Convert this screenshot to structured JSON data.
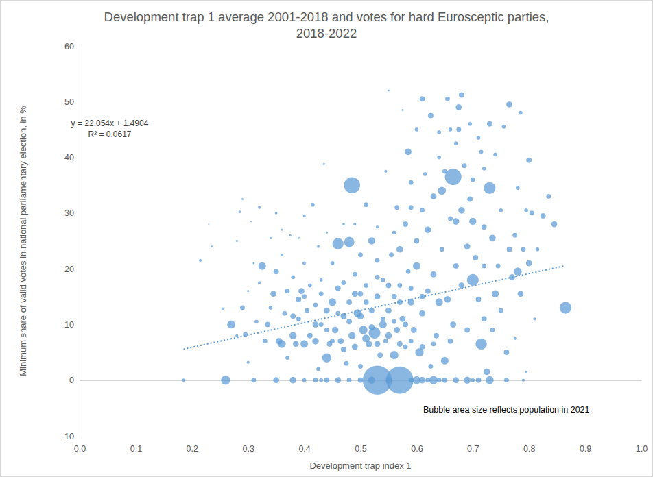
{
  "chart_data": {
    "type": "scatter",
    "title": [
      "Development trap 1 average 2001-2018 and votes for hard Eurosceptic parties,",
      "2018-2022"
    ],
    "x_label": "Development trap index 1",
    "y_label": "Minimum share of valid votes in national parliamentary election, in %",
    "note": "Bubble area size reflects population in 2021",
    "color": "#5b9bd5",
    "marker": "circle",
    "grid": false,
    "xlim": [
      0,
      1
    ],
    "xticks": [
      {
        "value": 0,
        "label": "0.0"
      },
      0.1,
      0.2,
      0.3,
      0.4,
      0.5,
      0.6,
      0.7,
      0.8,
      0.9,
      {
        "value": 1,
        "label": "1.0"
      }
    ],
    "ylim": [
      -10,
      60
    ],
    "yticks": [
      -10,
      0,
      10,
      20,
      30,
      40,
      50,
      60
    ],
    "trendline": {
      "line_style": "dotted",
      "equation": "y = 22.054x + 1.4904",
      "r_squared": "R² = 0.0617",
      "x": [
        0.185,
        0.865
      ],
      "values": [
        5.57,
        20.57
      ]
    },
    "x": [
      0.185,
      0.26,
      0.31,
      0.35,
      0.38,
      0.42,
      0.44,
      0.46,
      0.48,
      0.5,
      0.53,
      0.57,
      0.55,
      0.6,
      0.61,
      0.63,
      0.65,
      0.67,
      0.69,
      0.71,
      0.73,
      0.76,
      0.79,
      0.52,
      0.4,
      0.59,
      0.64,
      0.7,
      0.43,
      0.62,
      0.215,
      0.235,
      0.23,
      0.255,
      0.27,
      0.28,
      0.28,
      0.285,
      0.29,
      0.29,
      0.295,
      0.3,
      0.3,
      0.305,
      0.31,
      0.315,
      0.32,
      0.32,
      0.325,
      0.33,
      0.335,
      0.34,
      0.34,
      0.345,
      0.35,
      0.35,
      0.355,
      0.36,
      0.36,
      0.365,
      0.37,
      0.37,
      0.375,
      0.38,
      0.38,
      0.385,
      0.39,
      0.39,
      0.395,
      0.4,
      0.4,
      0.4,
      0.405,
      0.41,
      0.41,
      0.415,
      0.42,
      0.42,
      0.425,
      0.425,
      0.43,
      0.43,
      0.435,
      0.44,
      0.44,
      0.445,
      0.45,
      0.45,
      0.455,
      0.46,
      0.46,
      0.465,
      0.47,
      0.47,
      0.475,
      0.48,
      0.48,
      0.485,
      0.485,
      0.49,
      0.49,
      0.495,
      0.5,
      0.5,
      0.5,
      0.505,
      0.51,
      0.51,
      0.515,
      0.52,
      0.52,
      0.525,
      0.53,
      0.53,
      0.535,
      0.54,
      0.54,
      0.545,
      0.545,
      0.55,
      0.55,
      0.555,
      0.56,
      0.56,
      0.565,
      0.565,
      0.57,
      0.57,
      0.575,
      0.575,
      0.58,
      0.58,
      0.585,
      0.585,
      0.59,
      0.59,
      0.595,
      0.6,
      0.6,
      0.6,
      0.605,
      0.61,
      0.61,
      0.61,
      0.615,
      0.62,
      0.62,
      0.625,
      0.625,
      0.63,
      0.63,
      0.635,
      0.64,
      0.64,
      0.645,
      0.645,
      0.65,
      0.65,
      0.655,
      0.655,
      0.66,
      0.66,
      0.665,
      0.665,
      0.67,
      0.67,
      0.675,
      0.675,
      0.68,
      0.68,
      0.68,
      0.685,
      0.69,
      0.69,
      0.695,
      0.695,
      0.7,
      0.7,
      0.7,
      0.705,
      0.71,
      0.71,
      0.715,
      0.715,
      0.72,
      0.72,
      0.725,
      0.73,
      0.73,
      0.735,
      0.74,
      0.74,
      0.745,
      0.75,
      0.755,
      0.76,
      0.765,
      0.765,
      0.77,
      0.775,
      0.78,
      0.78,
      0.785,
      0.785,
      0.79,
      0.795,
      0.8,
      0.8,
      0.805,
      0.81,
      0.815,
      0.825,
      0.835,
      0.845,
      0.865,
      0.795,
      0.775,
      0.75,
      0.735,
      0.72,
      0.45,
      0.47,
      0.51,
      0.53,
      0.55,
      0.57,
      0.59,
      0.61,
      0.63,
      0.66,
      0.38,
      0.42,
      0.44,
      0.46,
      0.48,
      0.5,
      0.52,
      0.54,
      0.56,
      0.58,
      0.4,
      0.43,
      0.47,
      0.49,
      0.51,
      0.53,
      0.55,
      0.57,
      0.59,
      0.61,
      0.36,
      0.39,
      0.44,
      0.49,
      0.53,
      0.56,
      0.59,
      0.64,
      0.67,
      0.72
    ],
    "values": [
      0,
      0,
      0,
      0,
      0,
      0,
      0,
      0,
      0,
      0,
      0,
      0,
      0,
      0,
      0,
      0,
      0,
      0,
      0,
      0,
      0,
      0,
      0,
      0,
      0,
      0,
      0,
      0,
      0,
      0,
      21.5,
      24,
      28,
      12.8,
      10,
      8,
      25,
      30.2,
      32.5,
      13,
      8.2,
      16,
      3.2,
      28.5,
      21,
      10.5,
      17.5,
      31,
      20.5,
      7,
      10,
      13,
      25.5,
      15.5,
      30,
      19.5,
      7,
      6.5,
      22.5,
      12,
      16,
      4,
      26,
      8,
      18.5,
      6.5,
      14.5,
      11,
      16,
      6.5,
      21,
      29.5,
      12.5,
      8,
      17,
      31.5,
      7,
      13.5,
      2,
      24,
      10,
      18,
      38.8,
      4,
      12.5,
      6.5,
      14,
      21,
      9,
      24.5,
      16.5,
      7,
      11.5,
      28,
      3,
      24.8,
      14,
      35,
      8,
      19,
      6,
      12,
      22.5,
      15.5,
      2.5,
      9,
      31.5,
      17,
      6.5,
      12.5,
      25,
      8.5,
      21.5,
      15,
      4.5,
      10,
      18,
      37.5,
      7,
      12.5,
      52,
      22.5,
      15,
      4.5,
      31,
      9,
      23.5,
      17,
      48.5,
      11,
      28,
      6,
      41,
      19.5,
      14,
      35.5,
      9,
      45,
      25,
      20.5,
      5,
      50.5,
      30.5,
      12,
      37,
      27,
      16,
      47.5,
      2.5,
      33,
      19,
      8,
      44.5,
      14,
      34,
      23.5,
      37.5,
      3.5,
      50.5,
      14.5,
      29,
      45,
      36.5,
      10,
      28.5,
      20.5,
      49,
      45,
      51.2,
      30.5,
      17,
      38.5,
      24,
      9,
      46,
      32.5,
      18,
      28.5,
      36,
      22,
      43.5,
      14.5,
      6.5,
      41,
      27.5,
      20.5,
      1.5,
      46,
      34.5,
      25.5,
      15.5,
      40.5,
      20.5,
      30.5,
      45.5,
      5,
      49.5,
      23.5,
      18.5,
      26,
      19.5,
      34.5,
      48,
      15.5,
      23.5,
      30.5,
      39.5,
      21,
      30,
      11,
      23.5,
      29.5,
      33,
      28,
      13,
      1.5,
      7.5,
      12.5,
      9,
      11,
      7,
      5.5,
      7.5,
      6.5,
      8,
      6.5,
      7,
      6,
      6.5,
      7,
      11.5,
      10,
      9,
      12,
      10.5,
      11.5,
      9.5,
      11,
      10.5,
      10,
      15,
      15.5,
      17.5,
      15.5,
      14,
      18.5,
      17,
      14,
      16.5,
      15,
      27,
      25.5,
      26.5,
      28,
      27.5,
      26.5,
      31,
      40,
      42.5,
      38
    ],
    "size": [
      0.15,
      1.2,
      0.3,
      0.5,
      0.6,
      0.3,
      0.4,
      0.5,
      0.3,
      0.4,
      12.5,
      11.0,
      0.5,
      0.9,
      0.6,
      1.0,
      0.4,
      0.5,
      0.7,
      0.4,
      0.9,
      0.3,
      0.1,
      0.7,
      0.2,
      0.3,
      0.3,
      0.2,
      0.2,
      0.3,
      0.1,
      0.05,
      0.02,
      0.1,
      0.9,
      0.1,
      0.05,
      0.08,
      0.05,
      0.3,
      0.3,
      0.05,
      0.1,
      0.03,
      0.05,
      0.2,
      0.1,
      0.1,
      0.8,
      0.3,
      0.4,
      0.2,
      0.06,
      0.5,
      0.08,
      0.4,
      0.6,
      0.9,
      0.1,
      0.3,
      0.3,
      0.2,
      0.05,
      0.7,
      0.2,
      0.5,
      0.4,
      0.3,
      0.5,
      0.8,
      0.15,
      0.1,
      0.3,
      0.4,
      0.2,
      0.2,
      0.6,
      0.3,
      0.2,
      0.1,
      0.3,
      0.15,
      0.05,
      1.2,
      0.5,
      0.4,
      0.8,
      0.2,
      0.6,
      1.8,
      0.4,
      0.5,
      0.5,
      0.08,
      0.3,
      1.5,
      0.4,
      3.8,
      0.7,
      0.3,
      0.5,
      0.9,
      0.3,
      0.4,
      0.3,
      1.0,
      0.3,
      0.3,
      0.6,
      0.4,
      0.7,
      2.0,
      0.3,
      0.5,
      0.4,
      0.8,
      0.3,
      0.1,
      0.3,
      0.5,
      0.05,
      0.3,
      0.4,
      1.0,
      0.3,
      0.5,
      0.6,
      0.3,
      0.05,
      0.5,
      0.4,
      0.3,
      0.6,
      0.3,
      0.6,
      0.3,
      0.5,
      0.2,
      0.4,
      0.8,
      1.0,
      0.4,
      0.3,
      0.5,
      0.2,
      0.6,
      0.4,
      0.4,
      0.3,
      0.5,
      0.5,
      0.4,
      0.2,
      0.8,
      0.9,
      0.3,
      0.3,
      0.8,
      0.3,
      0.6,
      0.3,
      0.2,
      4.0,
      0.5,
      0.6,
      0.4,
      0.5,
      0.3,
      0.4,
      0.6,
      0.5,
      0.3,
      0.5,
      0.4,
      0.2,
      0.4,
      2.0,
      0.7,
      0.3,
      0.4,
      0.2,
      0.4,
      1.8,
      0.2,
      0.4,
      0.3,
      0.6,
      0.4,
      2.0,
      0.6,
      0.7,
      0.2,
      0.3,
      0.2,
      0.2,
      0.4,
      0.5,
      0.4,
      0.5,
      0.3,
      0.9,
      0.2,
      0.2,
      0.5,
      0.3,
      0.2,
      0.4,
      0.5,
      0.3,
      0.1,
      0.2,
      0.4,
      0.3,
      0.5,
      2.0,
      0.05,
      0.1,
      0.3,
      0.3,
      0.4,
      0.3,
      0.4,
      0.8,
      0.5,
      0.6,
      0.4,
      0.3,
      0.4,
      0.3,
      0.4,
      0.4,
      0.5,
      0.3,
      0.3,
      0.4,
      0.6,
      0.5,
      0.3,
      0.3,
      0.4,
      0.3,
      0.3,
      0.3,
      0.5,
      0.4,
      0.3,
      0.4,
      0.4,
      0.3,
      0.4,
      0.05,
      0.05,
      0.05,
      0.1,
      0.1,
      0.2,
      0.3,
      0.2,
      0.2,
      0.2
    ]
  }
}
